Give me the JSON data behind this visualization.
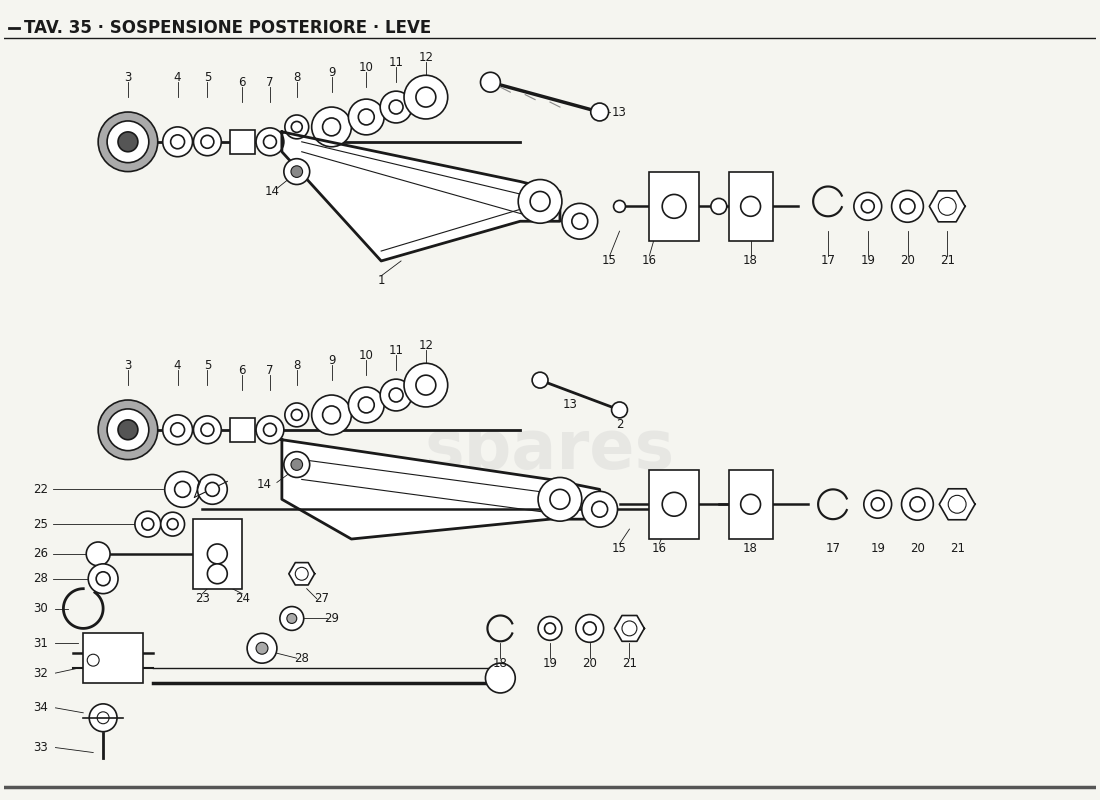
{
  "title": "TAV. 35 · SOSPENSIONE POSTERIORE · LEVE",
  "bg_color": "#f5f5f0",
  "line_color": "#1a1a1a",
  "watermark_text": "spares",
  "title_fontsize": 12,
  "label_fontsize": 8.5,
  "fig_width": 11.0,
  "fig_height": 8.0,
  "dpi": 100
}
